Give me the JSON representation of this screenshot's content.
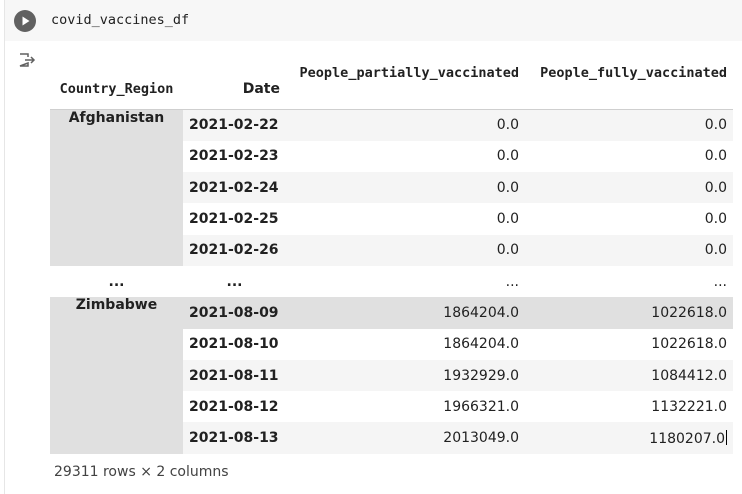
{
  "code": {
    "text": "covid_vaccines_df"
  },
  "table": {
    "columns": [
      "People_partially_vaccinated",
      "People_fully_vaccinated"
    ],
    "index_names": [
      "Country_Region",
      "Date"
    ],
    "groups": [
      {
        "region": "Afghanistan",
        "rows": [
          {
            "date": "2021-02-22",
            "partial": "0.0",
            "full": "0.0"
          },
          {
            "date": "2021-02-23",
            "partial": "0.0",
            "full": "0.0"
          },
          {
            "date": "2021-02-24",
            "partial": "0.0",
            "full": "0.0"
          },
          {
            "date": "2021-02-25",
            "partial": "0.0",
            "full": "0.0"
          },
          {
            "date": "2021-02-26",
            "partial": "0.0",
            "full": "0.0"
          }
        ]
      },
      {
        "region": "Zimbabwe",
        "rows": [
          {
            "date": "2021-08-09",
            "partial": "1864204.0",
            "full": "1022618.0"
          },
          {
            "date": "2021-08-10",
            "partial": "1864204.0",
            "full": "1022618.0"
          },
          {
            "date": "2021-08-11",
            "partial": "1932929.0",
            "full": "1084412.0"
          },
          {
            "date": "2021-08-12",
            "partial": "1966321.0",
            "full": "1132221.0"
          },
          {
            "date": "2021-08-13",
            "partial": "2013049.0",
            "full": "1180207.0"
          }
        ]
      }
    ],
    "ellipsis": [
      "...",
      "...",
      "...",
      "..."
    ],
    "shape_text": "29311 rows × 2 columns"
  },
  "icons": {
    "run": "play-circle-icon",
    "output": "output-exit-icon"
  },
  "colors": {
    "run_button": "#616161",
    "row_alt": "#f5f5f5",
    "row_highlight": "#e0e0e0"
  }
}
